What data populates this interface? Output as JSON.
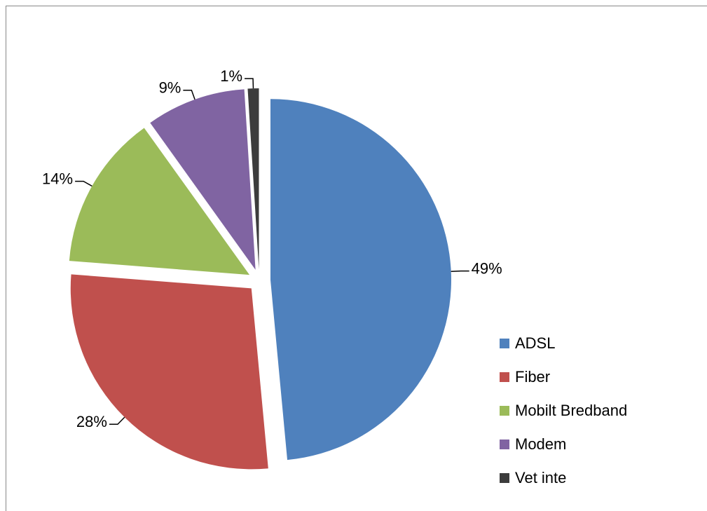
{
  "chart_data": {
    "type": "pie",
    "categories": [
      "ADSL",
      "Fiber",
      "Mobilt Bredband",
      "Modem",
      "Vet inte"
    ],
    "values": [
      49,
      28,
      14,
      9,
      1
    ],
    "value_labels": [
      "49%",
      "28%",
      "14%",
      "9%",
      "1%"
    ],
    "colors": [
      "#4f81bd",
      "#c0504d",
      "#9bbb59",
      "#8064a2",
      "#3c3c3c"
    ],
    "exploded": true,
    "legend": "right"
  }
}
